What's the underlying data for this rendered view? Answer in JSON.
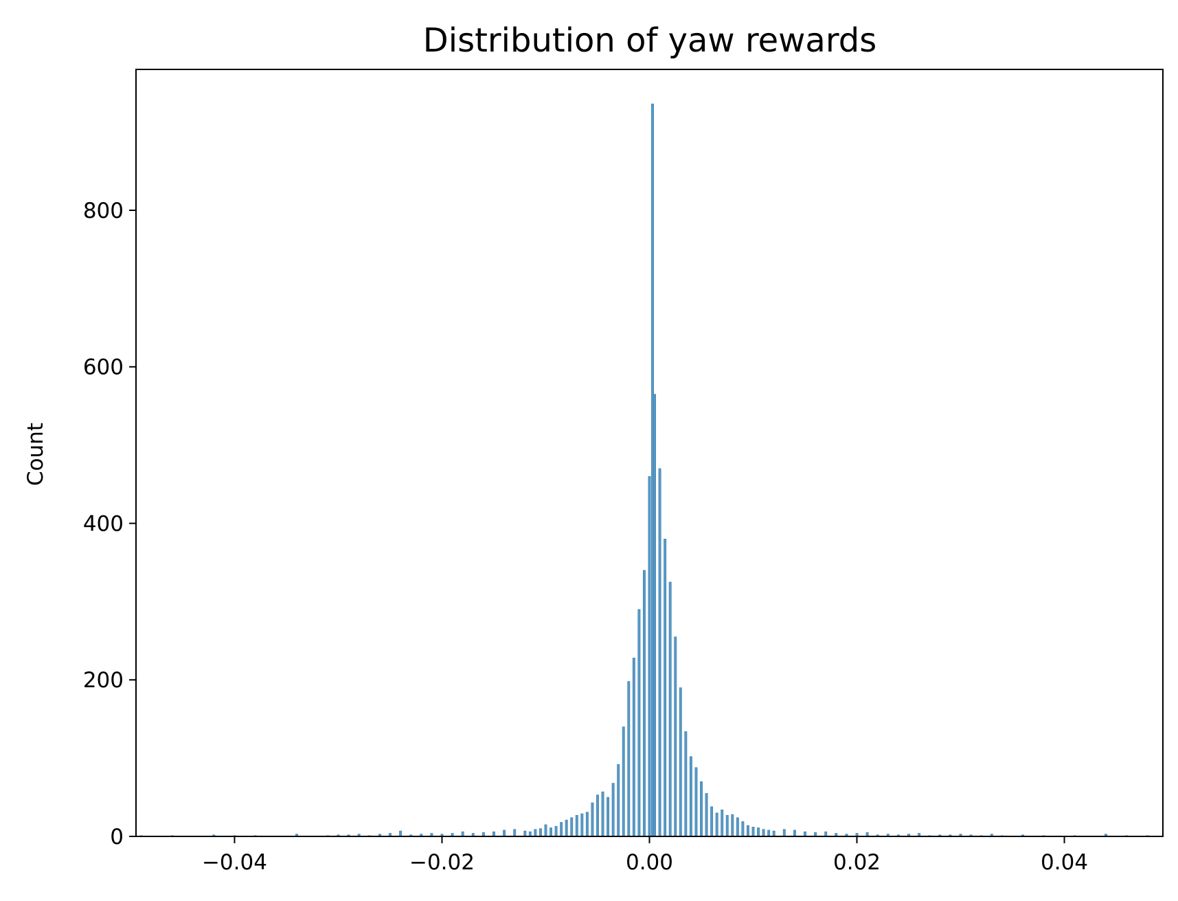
{
  "chart_data": {
    "type": "bar",
    "subtype": "histogram",
    "title": "Distribution of yaw rewards",
    "xlabel": "",
    "ylabel": "Count",
    "xlim": [
      -0.0495,
      0.0495
    ],
    "ylim": [
      0,
      980
    ],
    "x_ticks": [
      -0.04,
      -0.02,
      0.0,
      0.02,
      0.04
    ],
    "x_tick_labels": [
      "−0.04",
      "−0.02",
      "0.00",
      "0.02",
      "0.04"
    ],
    "y_ticks": [
      0,
      200,
      400,
      600,
      800
    ],
    "y_tick_labels": [
      "0",
      "200",
      "400",
      "600",
      "800"
    ],
    "grid": false,
    "bar_color": "#5799c6",
    "bins": [
      {
        "x": -0.049,
        "count": 1
      },
      {
        "x": -0.046,
        "count": 1
      },
      {
        "x": -0.042,
        "count": 2
      },
      {
        "x": -0.04,
        "count": 1
      },
      {
        "x": -0.038,
        "count": 1
      },
      {
        "x": -0.034,
        "count": 3
      },
      {
        "x": -0.031,
        "count": 1
      },
      {
        "x": -0.03,
        "count": 2
      },
      {
        "x": -0.029,
        "count": 2
      },
      {
        "x": -0.028,
        "count": 3
      },
      {
        "x": -0.027,
        "count": 1
      },
      {
        "x": -0.026,
        "count": 3
      },
      {
        "x": -0.025,
        "count": 4
      },
      {
        "x": -0.024,
        "count": 7
      },
      {
        "x": -0.023,
        "count": 2
      },
      {
        "x": -0.022,
        "count": 3
      },
      {
        "x": -0.021,
        "count": 4
      },
      {
        "x": -0.02,
        "count": 3
      },
      {
        "x": -0.019,
        "count": 4
      },
      {
        "x": -0.018,
        "count": 6
      },
      {
        "x": -0.017,
        "count": 4
      },
      {
        "x": -0.016,
        "count": 5
      },
      {
        "x": -0.015,
        "count": 6
      },
      {
        "x": -0.014,
        "count": 8
      },
      {
        "x": -0.013,
        "count": 9
      },
      {
        "x": -0.012,
        "count": 7
      },
      {
        "x": -0.0115,
        "count": 6
      },
      {
        "x": -0.011,
        "count": 9
      },
      {
        "x": -0.0105,
        "count": 10
      },
      {
        "x": -0.01,
        "count": 15
      },
      {
        "x": -0.0095,
        "count": 11
      },
      {
        "x": -0.009,
        "count": 13
      },
      {
        "x": -0.0085,
        "count": 18
      },
      {
        "x": -0.008,
        "count": 21
      },
      {
        "x": -0.0075,
        "count": 24
      },
      {
        "x": -0.007,
        "count": 27
      },
      {
        "x": -0.0065,
        "count": 29
      },
      {
        "x": -0.006,
        "count": 31
      },
      {
        "x": -0.0055,
        "count": 43
      },
      {
        "x": -0.005,
        "count": 53
      },
      {
        "x": -0.0045,
        "count": 57
      },
      {
        "x": -0.004,
        "count": 50
      },
      {
        "x": -0.0035,
        "count": 68
      },
      {
        "x": -0.003,
        "count": 92
      },
      {
        "x": -0.0025,
        "count": 140
      },
      {
        "x": -0.002,
        "count": 198
      },
      {
        "x": -0.0015,
        "count": 228
      },
      {
        "x": -0.001,
        "count": 290
      },
      {
        "x": -0.0005,
        "count": 340
      },
      {
        "x": 0.0,
        "count": 460
      },
      {
        "x": 0.0003,
        "count": 936
      },
      {
        "x": 0.0005,
        "count": 565
      },
      {
        "x": 0.001,
        "count": 470
      },
      {
        "x": 0.0015,
        "count": 380
      },
      {
        "x": 0.002,
        "count": 325
      },
      {
        "x": 0.0025,
        "count": 255
      },
      {
        "x": 0.003,
        "count": 190
      },
      {
        "x": 0.0035,
        "count": 134
      },
      {
        "x": 0.004,
        "count": 102
      },
      {
        "x": 0.0045,
        "count": 88
      },
      {
        "x": 0.005,
        "count": 70
      },
      {
        "x": 0.0055,
        "count": 55
      },
      {
        "x": 0.006,
        "count": 38
      },
      {
        "x": 0.0065,
        "count": 30
      },
      {
        "x": 0.007,
        "count": 34
      },
      {
        "x": 0.0075,
        "count": 27
      },
      {
        "x": 0.008,
        "count": 28
      },
      {
        "x": 0.0085,
        "count": 24
      },
      {
        "x": 0.009,
        "count": 19
      },
      {
        "x": 0.0095,
        "count": 14
      },
      {
        "x": 0.01,
        "count": 12
      },
      {
        "x": 0.0105,
        "count": 11
      },
      {
        "x": 0.011,
        "count": 9
      },
      {
        "x": 0.0115,
        "count": 8
      },
      {
        "x": 0.012,
        "count": 7
      },
      {
        "x": 0.013,
        "count": 9
      },
      {
        "x": 0.014,
        "count": 8
      },
      {
        "x": 0.015,
        "count": 6
      },
      {
        "x": 0.016,
        "count": 5
      },
      {
        "x": 0.017,
        "count": 6
      },
      {
        "x": 0.018,
        "count": 4
      },
      {
        "x": 0.019,
        "count": 3
      },
      {
        "x": 0.02,
        "count": 4
      },
      {
        "x": 0.021,
        "count": 5
      },
      {
        "x": 0.022,
        "count": 2
      },
      {
        "x": 0.023,
        "count": 3
      },
      {
        "x": 0.024,
        "count": 2
      },
      {
        "x": 0.025,
        "count": 3
      },
      {
        "x": 0.026,
        "count": 4
      },
      {
        "x": 0.027,
        "count": 1
      },
      {
        "x": 0.028,
        "count": 2
      },
      {
        "x": 0.029,
        "count": 2
      },
      {
        "x": 0.03,
        "count": 3
      },
      {
        "x": 0.031,
        "count": 2
      },
      {
        "x": 0.032,
        "count": 1
      },
      {
        "x": 0.033,
        "count": 3
      },
      {
        "x": 0.034,
        "count": 1
      },
      {
        "x": 0.036,
        "count": 2
      },
      {
        "x": 0.038,
        "count": 1
      },
      {
        "x": 0.041,
        "count": 1
      },
      {
        "x": 0.044,
        "count": 3
      },
      {
        "x": 0.046,
        "count": 1
      },
      {
        "x": 0.048,
        "count": 1
      }
    ]
  }
}
